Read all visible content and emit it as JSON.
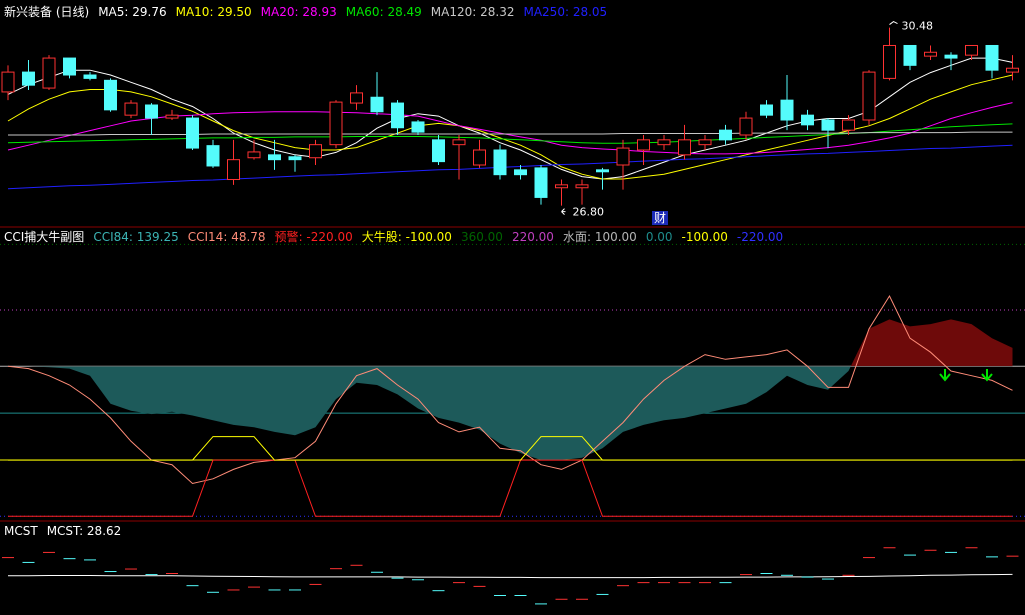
{
  "chart_data": [
    {
      "type": "candlestick",
      "title": "新兴装备 (日线)",
      "open": [
        29.15,
        29.56,
        29.23,
        29.85,
        29.5,
        29.39,
        28.67,
        28.88,
        28.61,
        28.61,
        28.04,
        27.34,
        27.79,
        27.85,
        27.81,
        27.79,
        28.06,
        28.92,
        29.04,
        28.92,
        28.53,
        28.16,
        28.06,
        27.64,
        27.95,
        27.54,
        27.58,
        27.17,
        27.17,
        27.54,
        27.64,
        27.95,
        28.06,
        27.85,
        28.06,
        28.36,
        28.26,
        28.88,
        28.98,
        28.67,
        28.57,
        28.36,
        28.57,
        29.43,
        30.11,
        29.89,
        29.91,
        29.91,
        30.11,
        29.56
      ],
      "high": [
        29.7,
        29.81,
        29.91,
        29.85,
        29.56,
        29.43,
        28.98,
        28.92,
        28.78,
        28.67,
        28.16,
        28.16,
        28.16,
        28.16,
        27.85,
        28.16,
        28.98,
        29.29,
        29.56,
        28.98,
        28.57,
        28.26,
        28.26,
        28.16,
        28.06,
        27.64,
        27.64,
        27.34,
        27.34,
        27.58,
        28.16,
        28.26,
        28.26,
        28.47,
        28.26,
        28.47,
        28.74,
        28.98,
        29.5,
        28.78,
        28.61,
        28.67,
        29.6,
        30.48,
        30.11,
        30.11,
        29.97,
        30.11,
        30.11,
        29.91
      ],
      "low": [
        28.98,
        29.19,
        29.19,
        29.43,
        29.39,
        28.74,
        28.61,
        28.26,
        28.57,
        27.95,
        27.58,
        27.23,
        27.75,
        27.54,
        27.5,
        27.64,
        27.99,
        28.78,
        28.67,
        28.26,
        28.26,
        27.64,
        27.34,
        27.58,
        27.34,
        27.34,
        26.82,
        26.8,
        26.82,
        27.13,
        27.13,
        27.64,
        27.95,
        27.75,
        27.95,
        28.06,
        28.16,
        28.61,
        28.36,
        28.36,
        27.99,
        28.26,
        28.47,
        29.39,
        29.6,
        29.81,
        29.6,
        29.81,
        29.43,
        29.39
      ],
      "close": [
        29.56,
        29.29,
        29.85,
        29.5,
        29.43,
        28.78,
        28.92,
        28.61,
        28.67,
        27.99,
        27.62,
        27.75,
        27.91,
        27.75,
        27.75,
        28.06,
        28.94,
        29.13,
        28.74,
        28.41,
        28.32,
        27.71,
        28.16,
        27.95,
        27.44,
        27.44,
        26.97,
        27.23,
        27.23,
        27.5,
        27.99,
        28.16,
        28.16,
        28.16,
        28.16,
        28.16,
        28.61,
        28.67,
        28.57,
        28.47,
        28.36,
        28.57,
        29.56,
        30.11,
        29.7,
        29.97,
        29.85,
        30.11,
        29.6,
        29.64
      ],
      "up_color": "#ff3232",
      "down_color": "#54fcfc",
      "ylim": [
        26.4,
        31.05
      ],
      "max_label": "30.48",
      "min_label": "26.80",
      "event_label": "财",
      "series": [
        {
          "name": "MA5",
          "color": "#ffffff",
          "legend_value": "29.76",
          "values": [
            29.1,
            29.3,
            29.45,
            29.6,
            29.6,
            29.5,
            29.35,
            29.2,
            29.0,
            28.85,
            28.6,
            28.3,
            28.1,
            27.95,
            27.85,
            27.8,
            27.9,
            28.1,
            28.4,
            28.6,
            28.7,
            28.65,
            28.45,
            28.3,
            28.1,
            27.95,
            27.75,
            27.55,
            27.4,
            27.35,
            27.4,
            27.55,
            27.7,
            27.85,
            27.95,
            28.05,
            28.15,
            28.3,
            28.45,
            28.55,
            28.6,
            28.6,
            28.75,
            29.05,
            29.35,
            29.55,
            29.7,
            29.85,
            29.85,
            29.76
          ]
        },
        {
          "name": "MA10",
          "color": "#ffff00",
          "legend_value": "29.50",
          "values": [
            28.55,
            28.8,
            29.0,
            29.15,
            29.2,
            29.2,
            29.15,
            29.05,
            28.9,
            28.75,
            28.55,
            28.35,
            28.2,
            28.1,
            28.0,
            27.95,
            27.95,
            28.0,
            28.15,
            28.3,
            28.45,
            28.5,
            28.45,
            28.35,
            28.2,
            28.05,
            27.85,
            27.6,
            27.45,
            27.35,
            27.35,
            27.4,
            27.45,
            27.55,
            27.65,
            27.75,
            27.85,
            27.95,
            28.05,
            28.15,
            28.25,
            28.35,
            28.45,
            28.6,
            28.8,
            29.0,
            29.15,
            29.3,
            29.4,
            29.5
          ]
        },
        {
          "name": "MA20",
          "color": "#ff00ff",
          "legend_value": "28.93",
          "values": [
            27.95,
            28.05,
            28.15,
            28.25,
            28.35,
            28.45,
            28.55,
            28.6,
            28.65,
            28.67,
            28.7,
            28.72,
            28.73,
            28.74,
            28.74,
            28.74,
            28.73,
            28.72,
            28.7,
            28.68,
            28.65,
            28.55,
            28.45,
            28.38,
            28.3,
            28.22,
            28.15,
            28.05,
            28.0,
            27.97,
            27.95,
            27.92,
            27.9,
            27.88,
            27.87,
            27.87,
            27.88,
            27.9,
            27.93,
            27.96,
            28.0,
            28.05,
            28.12,
            28.2,
            28.3,
            28.45,
            28.6,
            28.72,
            28.83,
            28.93
          ]
        },
        {
          "name": "MA60",
          "color": "#00e600",
          "legend_value": "28.49",
          "values": [
            28.1,
            28.11,
            28.12,
            28.13,
            28.14,
            28.15,
            28.16,
            28.17,
            28.18,
            28.19,
            28.2,
            28.2,
            28.21,
            28.21,
            28.22,
            28.22,
            28.22,
            28.23,
            28.23,
            28.23,
            28.23,
            28.22,
            28.21,
            28.2,
            28.18,
            28.16,
            28.14,
            28.12,
            28.1,
            28.09,
            28.09,
            28.1,
            28.11,
            28.13,
            28.15,
            28.17,
            28.19,
            28.21,
            28.23,
            28.25,
            28.27,
            28.29,
            28.31,
            28.34,
            28.37,
            28.4,
            28.43,
            28.45,
            28.47,
            28.49
          ]
        },
        {
          "name": "MA120",
          "color": "#c8c8c8",
          "legend_value": "28.32",
          "values": [
            28.26,
            28.26,
            28.26,
            28.26,
            28.26,
            28.27,
            28.27,
            28.27,
            28.27,
            28.27,
            28.28,
            28.28,
            28.28,
            28.28,
            28.28,
            28.28,
            28.28,
            28.28,
            28.28,
            28.28,
            28.28,
            28.28,
            28.28,
            28.28,
            28.28,
            28.28,
            28.28,
            28.28,
            28.28,
            28.28,
            28.29,
            28.29,
            28.29,
            28.29,
            28.29,
            28.29,
            28.3,
            28.3,
            28.3,
            28.3,
            28.3,
            28.3,
            28.31,
            28.31,
            28.31,
            28.31,
            28.31,
            28.32,
            28.32,
            28.32
          ]
        },
        {
          "name": "MA250",
          "color": "#2020ff",
          "legend_value": "28.05",
          "values": [
            27.15,
            27.17,
            27.19,
            27.21,
            27.22,
            27.24,
            27.26,
            27.28,
            27.3,
            27.32,
            27.33,
            27.35,
            27.37,
            27.39,
            27.41,
            27.43,
            27.44,
            27.46,
            27.48,
            27.5,
            27.52,
            27.54,
            27.55,
            27.57,
            27.59,
            27.61,
            27.63,
            27.65,
            27.66,
            27.68,
            27.7,
            27.72,
            27.74,
            27.76,
            27.77,
            27.79,
            27.81,
            27.83,
            27.85,
            27.87,
            27.88,
            27.9,
            27.92,
            27.94,
            27.96,
            27.98,
            27.99,
            28.01,
            28.03,
            28.05
          ]
        }
      ]
    },
    {
      "type": "line",
      "title": "CCI捕大牛副图",
      "ylim": [
        -230,
        395
      ],
      "series": [
        {
          "name": "CCI84",
          "color": "#3cb4b4",
          "fill_to": 100,
          "fill_above": "#6e0a0a",
          "fill_below": "#1d5a5a",
          "legend_value": "139.25",
          "values": [
            100,
            100,
            98,
            95,
            80,
            20,
            5,
            -2,
            3,
            -5,
            -15,
            -25,
            -30,
            -40,
            -47,
            -30,
            30,
            65,
            60,
            40,
            10,
            -10,
            -20,
            -35,
            -65,
            -85,
            -100,
            -100,
            -95,
            -75,
            -40,
            -25,
            -15,
            -10,
            0,
            10,
            20,
            45,
            80,
            60,
            50,
            90,
            180,
            200,
            185,
            190,
            200,
            190,
            160,
            139.25
          ]
        },
        {
          "name": "CCI14",
          "color": "#ff8c78",
          "legend_value": "48.78",
          "values": [
            100,
            95,
            80,
            60,
            30,
            -10,
            -60,
            -100,
            -110,
            -150,
            -140,
            -120,
            -105,
            -100,
            -95,
            -60,
            20,
            80,
            95,
            60,
            30,
            -20,
            -40,
            -30,
            -75,
            -80,
            -110,
            -120,
            -100,
            -60,
            -20,
            30,
            70,
            100,
            125,
            115,
            120,
            125,
            135,
            100,
            55,
            55,
            180,
            250,
            160,
            130,
            90,
            80,
            70,
            48.78
          ]
        },
        {
          "name": "预警",
          "color": "#ff2020",
          "legend_value": "-220.00",
          "values": [
            -220,
            -220,
            -220,
            -220,
            -220,
            -220,
            -220,
            -220,
            -220,
            -220,
            -100,
            -100,
            -100,
            -100,
            -100,
            -220,
            -220,
            -220,
            -220,
            -220,
            -220,
            -220,
            -220,
            -220,
            -220,
            -100,
            -100,
            -100,
            -100,
            -220,
            -220,
            -220,
            -220,
            -220,
            -220,
            -220,
            -220,
            -220,
            -220,
            -220,
            -220,
            -220,
            -220,
            -220,
            -220,
            -220,
            -220,
            -220,
            -220,
            -220
          ]
        },
        {
          "name": "大牛股",
          "color": "#ffff00",
          "legend_value": "-100.00",
          "values": [
            -100,
            -100,
            -100,
            -100,
            -100,
            -100,
            -100,
            -100,
            -100,
            -100,
            -50,
            -50,
            -50,
            -100,
            -100,
            -100,
            -100,
            -100,
            -100,
            -100,
            -100,
            -100,
            -100,
            -100,
            -100,
            -100,
            -50,
            -50,
            -50,
            -100,
            -100,
            -100,
            -100,
            -100,
            -100,
            -100,
            -100,
            -100,
            -100,
            -100,
            -100,
            -100,
            -100,
            -100,
            -100,
            -100,
            -100,
            -100,
            -100,
            -100
          ]
        }
      ],
      "levels": [
        {
          "value": 360,
          "label": "360.00",
          "color": "#006400"
        },
        {
          "value": 220,
          "label": "220.00",
          "color": "#c040c0"
        },
        {
          "name": "水面",
          "value": 100,
          "label": "100.00",
          "color": "#b4b4b4"
        },
        {
          "value": 0,
          "label": "0.00",
          "color": "#1e8c8c"
        },
        {
          "value": -100,
          "label": "-100.00",
          "color": "#ffff00"
        },
        {
          "value": -220,
          "label": "-220.00",
          "color": "#3030ff"
        }
      ]
    },
    {
      "type": "line",
      "title": "MCST",
      "ylim": [
        26.35,
        31.55
      ],
      "series": [
        {
          "name": "MCST",
          "color": "#ffffff",
          "legend_value": "28.62",
          "values": [
            28.55,
            28.55,
            28.56,
            28.56,
            28.56,
            28.55,
            28.55,
            28.54,
            28.54,
            28.53,
            28.52,
            28.51,
            28.5,
            28.49,
            28.48,
            28.48,
            28.48,
            28.48,
            28.48,
            28.48,
            28.47,
            28.47,
            28.46,
            28.46,
            28.45,
            28.45,
            28.44,
            28.44,
            28.44,
            28.44,
            28.44,
            28.44,
            28.45,
            28.45,
            28.46,
            28.46,
            28.47,
            28.47,
            28.48,
            28.48,
            28.49,
            28.5,
            28.51,
            28.53,
            28.55,
            28.57,
            28.58,
            28.6,
            28.61,
            28.62
          ]
        }
      ]
    }
  ]
}
